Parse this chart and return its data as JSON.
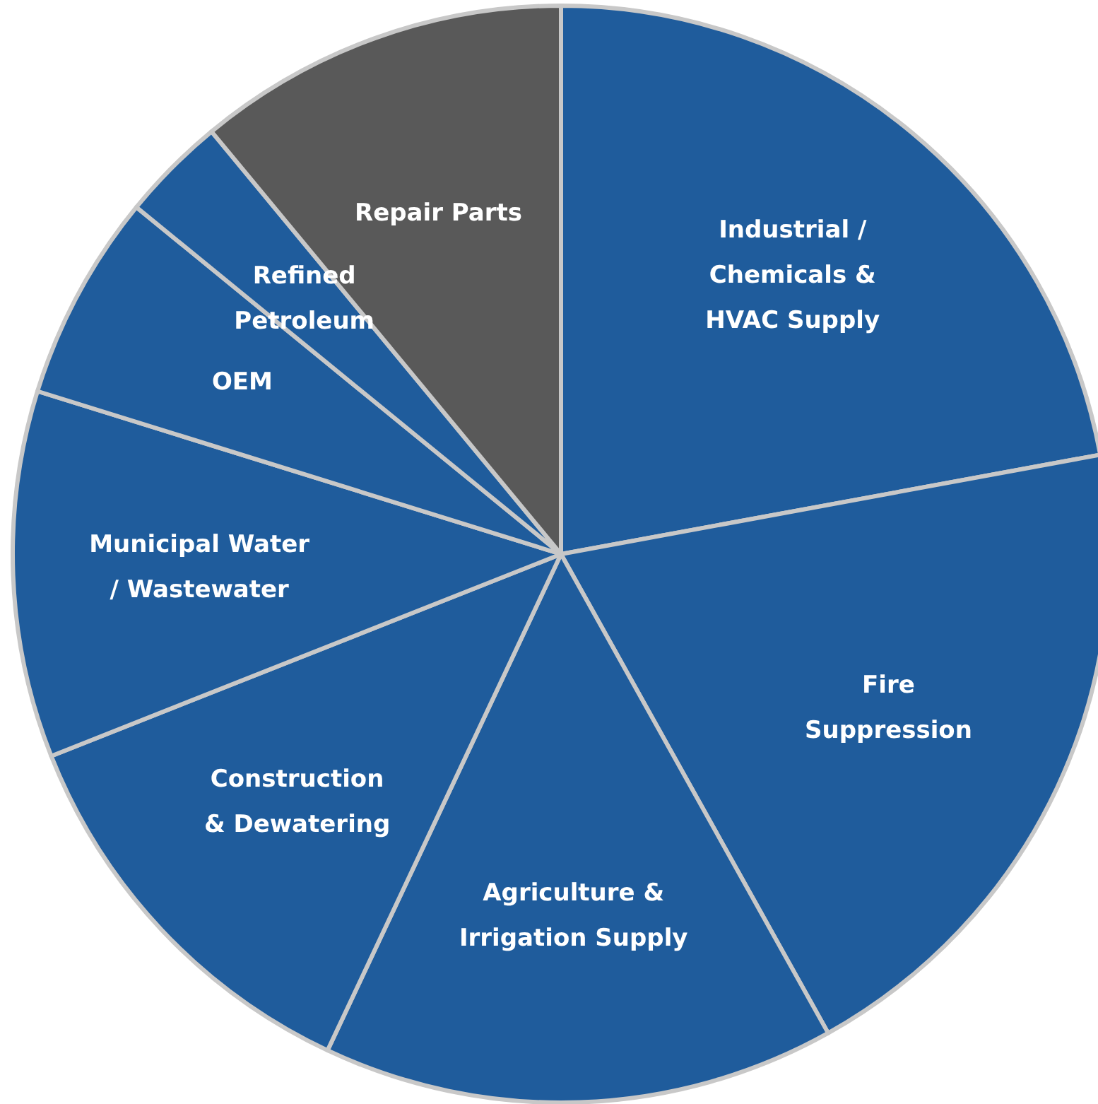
{
  "chart_data": {
    "type": "pie",
    "categories": [
      "Industrial /\nChemicals &\nHVAC Supply",
      "Fire\nSuppression",
      "Agriculture &\nIrrigation Supply",
      "Construction\n& Dewatering",
      "Municipal Water\n/ Wastewater",
      "OEM",
      "Refined\nPetroleum",
      "Repair Parts"
    ],
    "values": [
      22.1,
      19.8,
      15.1,
      12.0,
      10.8,
      6.1,
      3.1,
      11.0
    ],
    "colors": [
      "#1f5c9c",
      "#1f5c9c",
      "#1f5c9c",
      "#1f5c9c",
      "#1f5c9c",
      "#1f5c9c",
      "#1f5c9c",
      "#595959"
    ]
  }
}
